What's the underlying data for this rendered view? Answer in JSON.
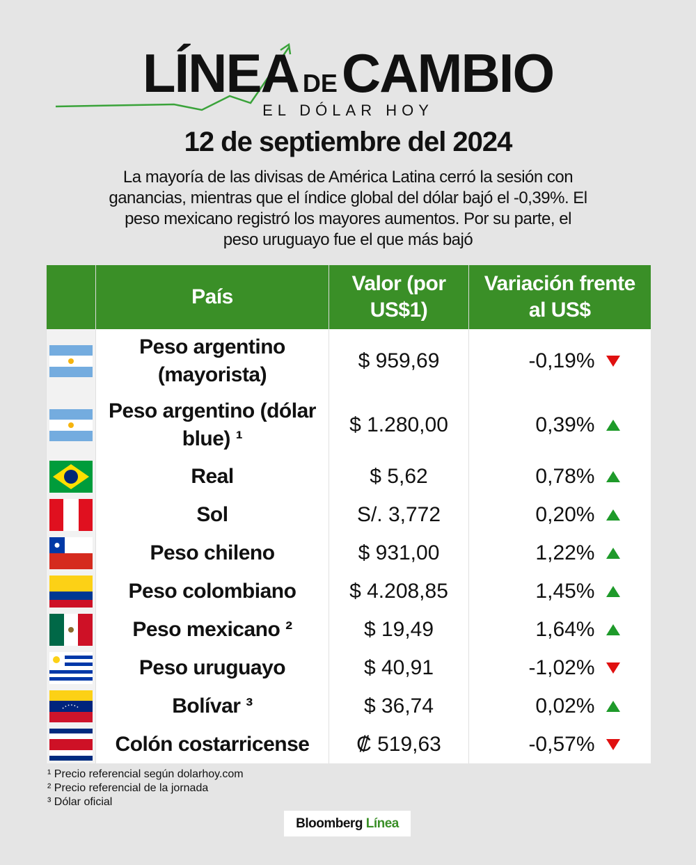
{
  "header": {
    "logo_left": "LÍNEA",
    "logo_mid": "DE",
    "logo_right": "CAMBIO",
    "subtitle": "EL DÓLAR HOY"
  },
  "date": "12 de septiembre del 2024",
  "summary": "La mayoría de las divisas de América Latina cerró la sesión con ganancias, mientras que el índice global del dólar bajó el -0,39%. El peso mexicano registró los mayores aumentos. Por su parte, el peso uruguayo fue el que más bajó",
  "table": {
    "columns": [
      "País",
      "Valor (por US$1)",
      "Variación frente al US$"
    ],
    "rows": [
      [
        "Peso argentino (mayorista)",
        "$ 959,69",
        "-0,19%"
      ],
      [
        "Peso argentino (dólar blue) ¹",
        "$ 1.280,00",
        "0,39%"
      ],
      [
        "Real",
        "$ 5,62",
        "0,78%"
      ],
      [
        "Sol",
        "S/. 3,772",
        "0,20%"
      ],
      [
        "Peso chileno",
        "$ 931,00",
        "1,22%"
      ],
      [
        "Peso colombiano",
        "$ 4.208,85",
        "1,45%"
      ],
      [
        "Peso mexicano ²",
        "$ 19,49",
        "1,64%"
      ],
      [
        "Peso uruguayo",
        "$ 40,91",
        "-1,02%"
      ],
      [
        "Bolívar ³",
        "$ 36,74",
        "0,02%"
      ],
      [
        "Colón costarricense",
        "₡ 519,63",
        "-0,57%"
      ]
    ]
  },
  "footnotes": [
    "¹ Precio referencial según dolarhoy.com",
    "² Precio referencial de la jornada",
    "³ Dólar oficial"
  ],
  "brand": {
    "name": "Bloomberg",
    "suffix": "Línea"
  }
}
